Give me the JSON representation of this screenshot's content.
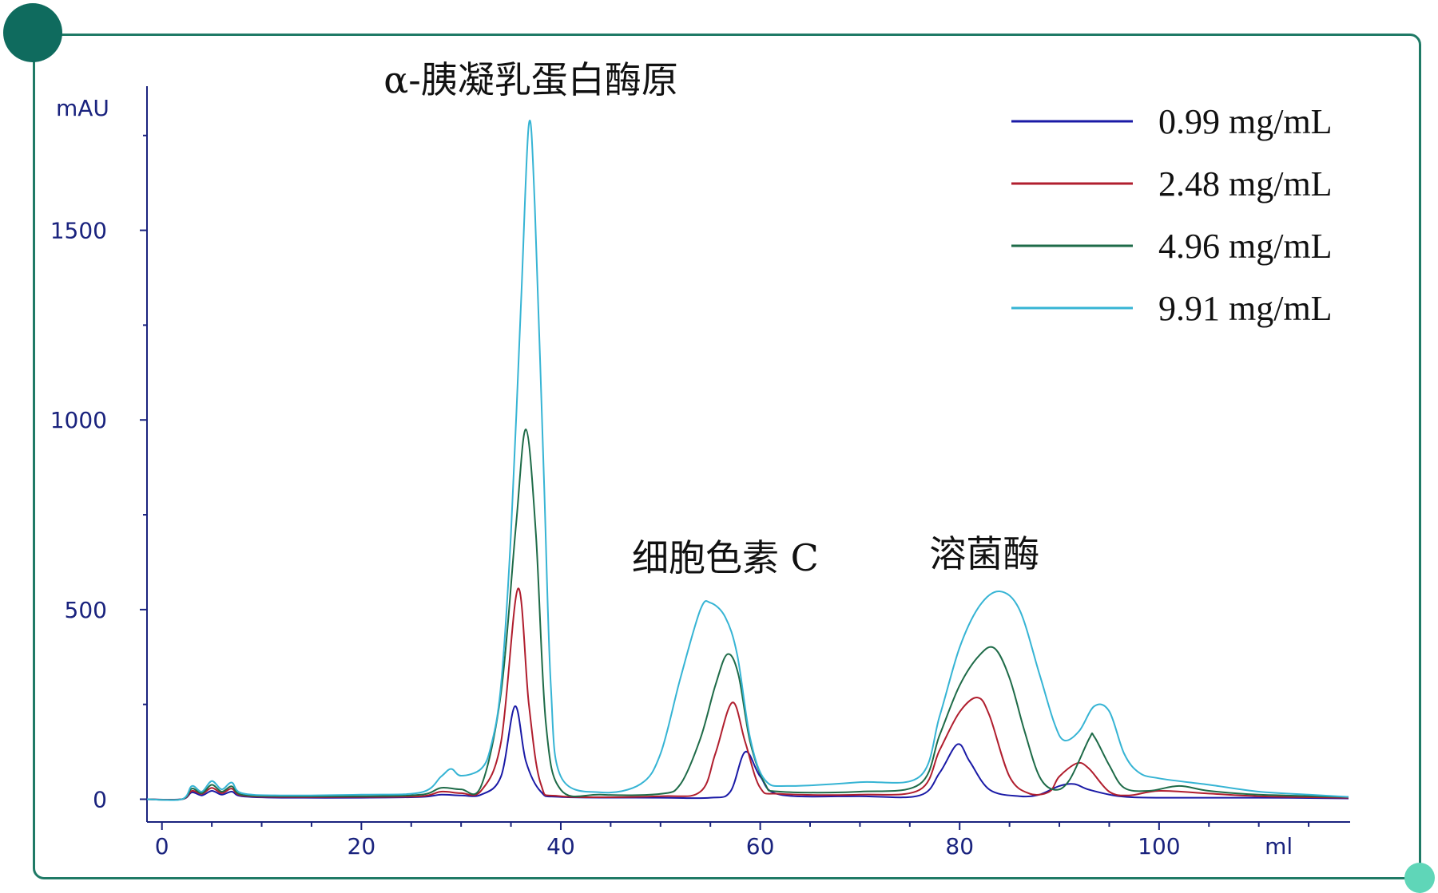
{
  "colors": {
    "frame": "#1f7a66",
    "dot_top_left": "#0f6b5e",
    "dot_bottom_right": "#5fd6b8",
    "axis": "#1a237e"
  },
  "chart_data": {
    "type": "line",
    "ylabel": "mAU",
    "xlabel": "ml",
    "xlim": [
      -1.5,
      119
    ],
    "ylim": [
      -60,
      1880
    ],
    "x_ticks": [
      0,
      20,
      40,
      60,
      80,
      100
    ],
    "y_ticks": [
      0,
      500,
      1000,
      1500
    ],
    "grid": false,
    "legend_position": "top-right",
    "annotations": [
      {
        "text": "α-胰凝乳蛋白酶原",
        "x": 37,
        "y": 1880
      },
      {
        "text": "细胞色素 C",
        "x": 56.5,
        "y": 620
      },
      {
        "text": "溶菌酶",
        "x": 82.5,
        "y": 630
      }
    ],
    "series": [
      {
        "name": "0.99 mg/mL",
        "color": "#1a1aa6",
        "points": [
          [
            -1.5,
            0
          ],
          [
            2,
            0
          ],
          [
            3,
            18
          ],
          [
            4,
            10
          ],
          [
            5,
            22
          ],
          [
            6,
            12
          ],
          [
            7,
            20
          ],
          [
            8,
            8
          ],
          [
            12,
            4
          ],
          [
            20,
            4
          ],
          [
            26,
            6
          ],
          [
            28,
            12
          ],
          [
            30,
            10
          ],
          [
            32,
            12
          ],
          [
            34,
            60
          ],
          [
            35.4,
            245
          ],
          [
            36.5,
            100
          ],
          [
            38,
            20
          ],
          [
            40,
            6
          ],
          [
            50,
            4
          ],
          [
            55,
            4
          ],
          [
            57,
            20
          ],
          [
            58.5,
            125
          ],
          [
            60,
            60
          ],
          [
            62,
            12
          ],
          [
            70,
            8
          ],
          [
            76,
            10
          ],
          [
            78,
            70
          ],
          [
            79.8,
            145
          ],
          [
            81,
            100
          ],
          [
            83,
            25
          ],
          [
            86,
            8
          ],
          [
            88,
            12
          ],
          [
            90,
            35
          ],
          [
            91.5,
            40
          ],
          [
            93,
            25
          ],
          [
            96,
            8
          ],
          [
            100,
            4
          ],
          [
            110,
            4
          ],
          [
            119,
            2
          ]
        ]
      },
      {
        "name": "2.48 mg/mL",
        "color": "#b01e2e",
        "points": [
          [
            -1.5,
            0
          ],
          [
            2,
            0
          ],
          [
            3,
            22
          ],
          [
            4,
            14
          ],
          [
            5,
            30
          ],
          [
            6,
            16
          ],
          [
            7,
            28
          ],
          [
            8,
            10
          ],
          [
            12,
            6
          ],
          [
            20,
            6
          ],
          [
            26,
            8
          ],
          [
            28,
            20
          ],
          [
            30,
            16
          ],
          [
            32,
            22
          ],
          [
            34,
            150
          ],
          [
            35.7,
            555
          ],
          [
            36.8,
            250
          ],
          [
            38,
            40
          ],
          [
            40,
            8
          ],
          [
            50,
            8
          ],
          [
            54,
            20
          ],
          [
            55.5,
            120
          ],
          [
            57.2,
            255
          ],
          [
            58.5,
            150
          ],
          [
            60,
            30
          ],
          [
            62,
            14
          ],
          [
            70,
            12
          ],
          [
            76,
            25
          ],
          [
            78,
            130
          ],
          [
            80,
            230
          ],
          [
            81.8,
            268
          ],
          [
            83,
            220
          ],
          [
            85,
            60
          ],
          [
            87,
            15
          ],
          [
            89,
            20
          ],
          [
            90,
            60
          ],
          [
            91.8,
            95
          ],
          [
            93,
            80
          ],
          [
            95,
            20
          ],
          [
            97,
            10
          ],
          [
            100,
            22
          ],
          [
            105,
            15
          ],
          [
            110,
            8
          ],
          [
            119,
            4
          ]
        ]
      },
      {
        "name": "4.96 mg/mL",
        "color": "#1e6b48",
        "points": [
          [
            -1.5,
            0
          ],
          [
            2,
            0
          ],
          [
            3,
            28
          ],
          [
            4,
            16
          ],
          [
            5,
            38
          ],
          [
            6,
            20
          ],
          [
            7,
            34
          ],
          [
            8,
            12
          ],
          [
            12,
            8
          ],
          [
            20,
            8
          ],
          [
            26,
            12
          ],
          [
            28,
            30
          ],
          [
            30,
            26
          ],
          [
            32,
            34
          ],
          [
            34,
            280
          ],
          [
            35.5,
            720
          ],
          [
            36.5,
            975
          ],
          [
            37.5,
            700
          ],
          [
            38.5,
            200
          ],
          [
            40,
            25
          ],
          [
            44,
            12
          ],
          [
            50,
            14
          ],
          [
            52,
            40
          ],
          [
            54,
            160
          ],
          [
            55.5,
            300
          ],
          [
            56.7,
            382
          ],
          [
            57.8,
            330
          ],
          [
            59,
            150
          ],
          [
            60.5,
            40
          ],
          [
            62,
            20
          ],
          [
            70,
            20
          ],
          [
            76,
            40
          ],
          [
            78,
            170
          ],
          [
            80,
            300
          ],
          [
            82,
            380
          ],
          [
            83.5,
            398
          ],
          [
            85,
            320
          ],
          [
            86.5,
            180
          ],
          [
            88,
            60
          ],
          [
            89.5,
            25
          ],
          [
            91,
            50
          ],
          [
            93,
            160
          ],
          [
            93.5,
            165
          ],
          [
            95,
            90
          ],
          [
            96.5,
            30
          ],
          [
            99,
            22
          ],
          [
            102,
            35
          ],
          [
            105,
            22
          ],
          [
            110,
            12
          ],
          [
            119,
            6
          ]
        ]
      },
      {
        "name": "9.91 mg/mL",
        "color": "#36b4d4",
        "points": [
          [
            -1.5,
            0
          ],
          [
            2,
            0
          ],
          [
            3,
            35
          ],
          [
            4,
            20
          ],
          [
            5,
            48
          ],
          [
            6,
            26
          ],
          [
            7,
            44
          ],
          [
            8,
            16
          ],
          [
            12,
            10
          ],
          [
            20,
            12
          ],
          [
            26,
            18
          ],
          [
            28,
            60
          ],
          [
            29,
            80
          ],
          [
            30,
            62
          ],
          [
            32,
            80
          ],
          [
            33,
            140
          ],
          [
            34,
            300
          ],
          [
            35,
            700
          ],
          [
            36,
            1300
          ],
          [
            36.8,
            1780
          ],
          [
            37.4,
            1560
          ],
          [
            38.3,
            850
          ],
          [
            39,
            300
          ],
          [
            40,
            60
          ],
          [
            44,
            18
          ],
          [
            48,
            40
          ],
          [
            50,
            120
          ],
          [
            52,
            320
          ],
          [
            54,
            500
          ],
          [
            55,
            518
          ],
          [
            56.5,
            480
          ],
          [
            57.7,
            380
          ],
          [
            59,
            160
          ],
          [
            60.5,
            50
          ],
          [
            63,
            35
          ],
          [
            70,
            45
          ],
          [
            76,
            60
          ],
          [
            78,
            220
          ],
          [
            80,
            400
          ],
          [
            82,
            510
          ],
          [
            84,
            548
          ],
          [
            86,
            500
          ],
          [
            88,
            330
          ],
          [
            89.5,
            200
          ],
          [
            90.5,
            155
          ],
          [
            92,
            180
          ],
          [
            93.5,
            245
          ],
          [
            95,
            232
          ],
          [
            96.5,
            120
          ],
          [
            98,
            70
          ],
          [
            100,
            55
          ],
          [
            105,
            38
          ],
          [
            110,
            20
          ],
          [
            115,
            12
          ],
          [
            119,
            6
          ]
        ]
      }
    ]
  }
}
